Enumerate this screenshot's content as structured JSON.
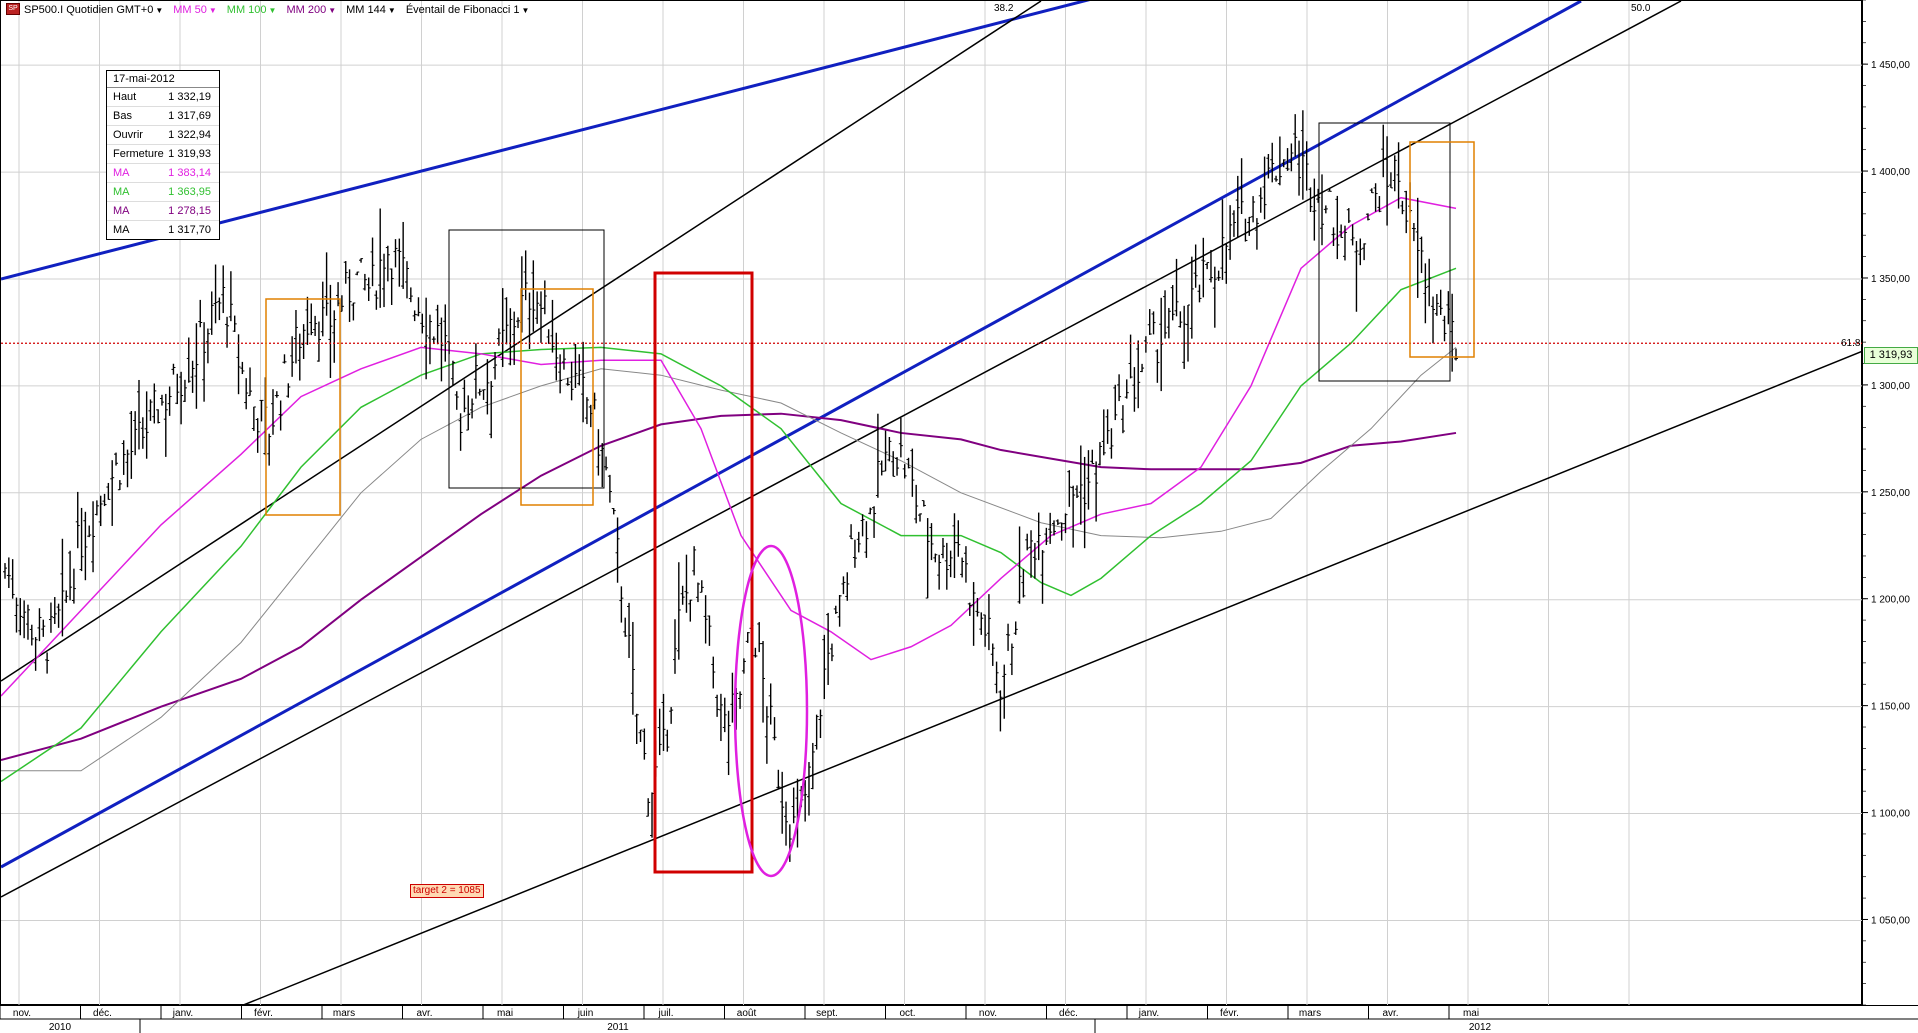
{
  "toolbar": {
    "symbol": "SP500.I Quotidien GMT+0",
    "ma50": "MM 50",
    "ma100": "MM 100",
    "ma200": "MM 200",
    "ma144": "MM 144",
    "fib": "Éventail de Fibonacci 1"
  },
  "info": {
    "date": "17-mai-2012",
    "rows": [
      {
        "label": "Haut",
        "value": "1 332,19",
        "color": "#000000"
      },
      {
        "label": "Bas",
        "value": "1 317,69",
        "color": "#000000"
      },
      {
        "label": "Ouvrir",
        "value": "1 322,94",
        "color": "#000000"
      },
      {
        "label": "Fermeture",
        "value": "1 319,93",
        "color": "#000000"
      },
      {
        "label": "MA",
        "value": "1 383,14",
        "color": "#e020e0"
      },
      {
        "label": "MA",
        "value": "1 363,95",
        "color": "#30c030"
      },
      {
        "label": "MA",
        "value": "1 278,15",
        "color": "#800080"
      },
      {
        "label": "MA",
        "value": "1 317,70",
        "color": "#000000"
      }
    ]
  },
  "annotations": {
    "target": "target 2 = 1085",
    "fib_382": "38.2",
    "fib_500": "50.0",
    "fib_618": "61.8",
    "last_price": "1 319,93"
  },
  "chart_data": {
    "type": "ohlc",
    "ylim": [
      1010,
      1480
    ],
    "yticks": [
      1050,
      1100,
      1150,
      1200,
      1250,
      1300,
      1350,
      1400,
      1450
    ],
    "ytick_labels": [
      "1 050,00",
      "1 100,00",
      "1 150,00",
      "1 200,00",
      "1 250,00",
      "1 300,00",
      "1 350,00",
      "1 400,00",
      "1 450,00"
    ],
    "months": [
      "nov.",
      "déc.",
      "janv.",
      "févr.",
      "mars",
      "avr.",
      "mai",
      "juin",
      "juil.",
      "août",
      "sept.",
      "oct.",
      "nov.",
      "déc.",
      "janv.",
      "févr.",
      "mars",
      "avr.",
      "mai"
    ],
    "years": [
      "2010",
      "2011",
      "2012"
    ],
    "close_series": [
      1215,
      1200,
      1185,
      1180,
      1195,
      1225,
      1240,
      1255,
      1265,
      1272,
      1285,
      1295,
      1305,
      1315,
      1330,
      1342,
      1310,
      1290,
      1280,
      1300,
      1322,
      1335,
      1328,
      1340,
      1350,
      1345,
      1365,
      1355,
      1340,
      1330,
      1320,
      1285,
      1300,
      1305,
      1320,
      1335,
      1345,
      1330,
      1310,
      1300,
      1290,
      1260,
      1210,
      1150,
      1110,
      1130,
      1190,
      1215,
      1180,
      1140,
      1150,
      1190,
      1150,
      1110,
      1090,
      1120,
      1170,
      1195,
      1230,
      1240,
      1265,
      1270,
      1250,
      1230,
      1220,
      1230,
      1200,
      1185,
      1160,
      1195,
      1225,
      1235,
      1240,
      1250,
      1255,
      1270,
      1285,
      1300,
      1315,
      1325,
      1330,
      1340,
      1350,
      1362,
      1375,
      1380,
      1395,
      1405,
      1410,
      1395,
      1385,
      1375,
      1365,
      1380,
      1395,
      1400,
      1370,
      1350,
      1330,
      1320
    ],
    "ma50_color": "#e020e0",
    "ma100_color": "#30c030",
    "ma200_color": "#800080",
    "ma144_color": "#888888",
    "fan_color": "#1020c0",
    "rect_red": "#d00000",
    "rect_orange": "#e08000",
    "ellipse_color": "#e020e0",
    "price_line_color": "#d00000",
    "last_price": 1319.93
  }
}
